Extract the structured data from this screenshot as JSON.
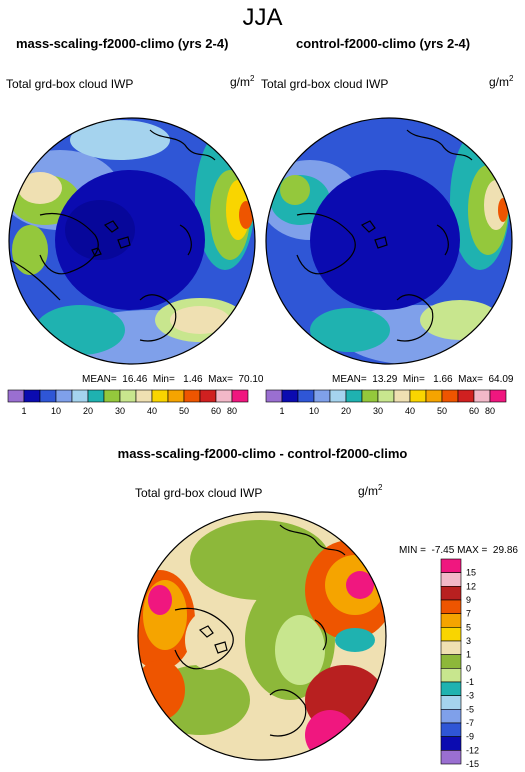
{
  "figure": {
    "season": "JJA",
    "units_base": "g/m",
    "units_exp": "2"
  },
  "panels": [
    {
      "title": "mass-scaling-f2000-climo (yrs 2-4)",
      "field_label": "Total grd-box cloud IWP",
      "stats": "MEAN=  16.46  Min=   1.46  Max=  70.10"
    },
    {
      "title": "control-f2000-climo (yrs 2-4)",
      "field_label": "Total grd-box cloud IWP",
      "stats": "MEAN=  13.29  Min=   1.66  Max=  64.09"
    }
  ],
  "diff_panel": {
    "title": "mass-scaling-f2000-climo - control-f2000-climo",
    "field_label": "Total grd-box cloud IWP",
    "stats": "MIN =  -7.45 MAX =  29.86"
  },
  "colorbars": {
    "abs_colors": [
      "#9a6fd1",
      "#0b0bb0",
      "#2f56d6",
      "#7fa0ea",
      "#a5d3ee",
      "#1fb2b0",
      "#94c83c",
      "#c8e68e",
      "#efe0b2",
      "#f9d500",
      "#f5a400",
      "#ee5500",
      "#d02020",
      "#f2b8c8",
      "#f0177f"
    ],
    "abs_ticks": [
      "1",
      "10",
      "20",
      "30",
      "40",
      "50",
      "60",
      "80"
    ],
    "diff_colors": [
      "#f0177f",
      "#f2b8c8",
      "#b82020",
      "#ee5500",
      "#f5a400",
      "#f9d500",
      "#efe0b2",
      "#8db83a",
      "#c8e68e",
      "#1fb2b0",
      "#a5d3ee",
      "#7fa0ea",
      "#2f56d6",
      "#0b0bb0",
      "#9a6fd1"
    ],
    "diff_ticks": [
      "15",
      "12",
      "9",
      "7",
      "5",
      "3",
      "1",
      "0",
      "-1",
      "-3",
      "-5",
      "-7",
      "-9",
      "-12",
      "-15"
    ]
  }
}
